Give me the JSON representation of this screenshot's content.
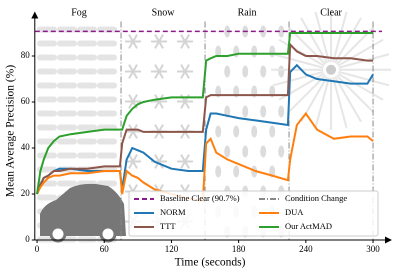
{
  "chart_data": {
    "type": "line",
    "xlabel": "Time (seconds)",
    "ylabel": "Mean Average Precision (%)",
    "x": [
      0,
      3,
      6,
      10,
      15,
      20,
      30,
      45,
      60,
      74,
      76,
      80,
      85,
      90,
      95,
      105,
      120,
      135,
      148,
      151,
      155,
      160,
      170,
      180,
      195,
      210,
      224,
      226,
      232,
      240,
      250,
      265,
      280,
      295,
      300
    ],
    "series": [
      {
        "name": "NORM",
        "color": "#1f77b4",
        "values": [
          20,
          24,
          27,
          28,
          30,
          31,
          31,
          30,
          30,
          30,
          22,
          35,
          40,
          39,
          38,
          34,
          31,
          30,
          30,
          48,
          55,
          55,
          54,
          53,
          52,
          51,
          50,
          73,
          76,
          72,
          70,
          69,
          68,
          68,
          72
        ]
      },
      {
        "name": "TTT",
        "color": "#8c564b",
        "values": [
          20,
          24,
          27,
          28,
          30,
          30,
          31,
          31,
          32,
          32,
          42,
          48,
          48,
          48,
          47,
          47,
          47,
          47,
          47,
          62,
          63,
          63,
          63,
          63,
          63,
          63,
          63,
          85,
          82,
          80,
          80,
          79,
          79,
          78,
          78
        ]
      },
      {
        "name": "DUA",
        "color": "#ff7f0e",
        "values": [
          20,
          23,
          25,
          27,
          28,
          28,
          29,
          29,
          30,
          30,
          20,
          30,
          28,
          27,
          25,
          22,
          20,
          18,
          17,
          42,
          44,
          38,
          35,
          33,
          30,
          28,
          26,
          35,
          50,
          55,
          48,
          44,
          45,
          45,
          43
        ]
      },
      {
        "name": "Our ActMAD",
        "color": "#2ca02c",
        "values": [
          20,
          30,
          35,
          40,
          43,
          45,
          46,
          47,
          48,
          48,
          48,
          54,
          57,
          59,
          60,
          61,
          62,
          62,
          62,
          78,
          79,
          80,
          80,
          81,
          81,
          81,
          81,
          90,
          90,
          90,
          90,
          90,
          90,
          90,
          90
        ]
      }
    ],
    "baseline": {
      "name": "Baseline Clear (90.7%)",
      "value": 90.7,
      "color": "#8b1a8b"
    },
    "condition_change": {
      "name": "Condition Change",
      "x": [
        75,
        150,
        225,
        300
      ],
      "color": "#888888"
    },
    "regions": [
      {
        "label": "Fog",
        "start": 0,
        "end": 75
      },
      {
        "label": "Snow",
        "start": 75,
        "end": 150
      },
      {
        "label": "Rain",
        "start": 150,
        "end": 225
      },
      {
        "label": "Clear",
        "start": 225,
        "end": 300
      }
    ],
    "xlim": [
      -2,
      308
    ],
    "ylim": [
      0,
      95
    ],
    "xticks": [
      0,
      60,
      120,
      180,
      240,
      300
    ],
    "yticks": [
      0,
      20,
      40,
      60,
      80
    ]
  }
}
